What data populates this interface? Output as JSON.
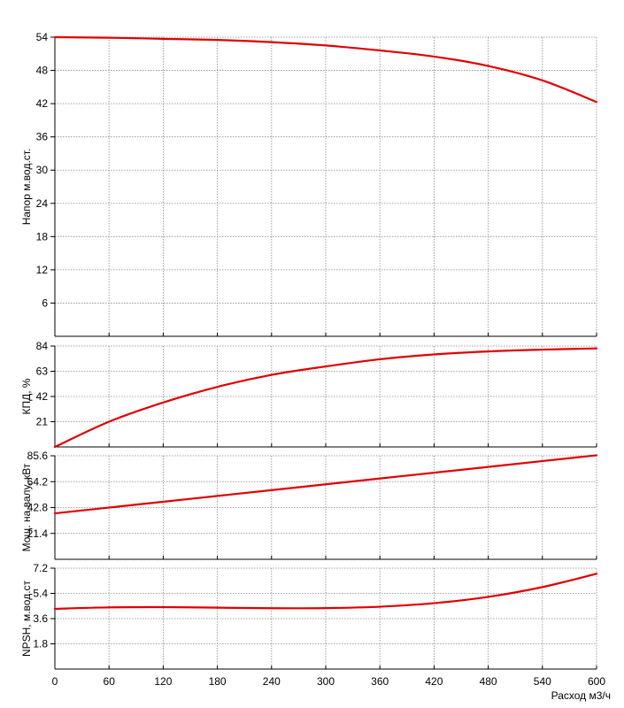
{
  "chart_data": [
    {
      "type": "line",
      "ylabel": "Напор м.вод.ст.",
      "xlim": [
        0,
        600
      ],
      "ylim": [
        0,
        54
      ],
      "yticks": [
        6,
        12,
        18,
        24,
        30,
        36,
        42,
        48,
        54
      ],
      "grid": true,
      "series": [
        {
          "x": [
            0,
            60,
            120,
            180,
            240,
            300,
            360,
            420,
            480,
            540,
            600
          ],
          "y": [
            54.0,
            53.9,
            53.7,
            53.5,
            53.1,
            52.5,
            51.6,
            50.5,
            48.8,
            46.2,
            42.3
          ]
        }
      ]
    },
    {
      "type": "line",
      "ylabel": "КПД, %",
      "xlim": [
        0,
        600
      ],
      "ylim": [
        0,
        84
      ],
      "yticks": [
        21,
        42,
        63,
        84
      ],
      "grid": true,
      "series": [
        {
          "x": [
            0,
            60,
            120,
            180,
            240,
            300,
            360,
            420,
            480,
            540,
            600
          ],
          "y": [
            0,
            21,
            37,
            50,
            60,
            67,
            73,
            77,
            79.5,
            81,
            82
          ]
        }
      ]
    },
    {
      "type": "line",
      "ylabel": "Мощ. на валу, кВт",
      "xlim": [
        0,
        600
      ],
      "ylim": [
        0,
        85.6
      ],
      "yticks": [
        21.4,
        42.8,
        64.2,
        85.6
      ],
      "ytick_labels": [
        "21.4",
        "42.8",
        "64.2",
        "85.6"
      ],
      "grid": true,
      "series": [
        {
          "x": [
            0,
            100,
            200,
            300,
            400,
            500,
            600
          ],
          "y": [
            38,
            46,
            54,
            62,
            70,
            78,
            86
          ]
        }
      ]
    },
    {
      "type": "line",
      "ylabel": "NPSH, м.вод.ст",
      "xlabel": "Расход м3/ч",
      "xlim": [
        0,
        600
      ],
      "ylim": [
        0,
        7.2
      ],
      "yticks": [
        1.8,
        3.6,
        5.4,
        7.2
      ],
      "xticks": [
        0,
        60,
        120,
        180,
        240,
        300,
        360,
        420,
        480,
        540,
        600
      ],
      "grid": true,
      "series": [
        {
          "x": [
            0,
            60,
            120,
            180,
            240,
            300,
            360,
            420,
            480,
            540,
            600
          ],
          "y": [
            4.3,
            4.4,
            4.42,
            4.38,
            4.34,
            4.35,
            4.45,
            4.7,
            5.15,
            5.85,
            6.8
          ]
        }
      ]
    }
  ],
  "style": {
    "line_color": "#e00000",
    "grid_color": "#888888",
    "axis_color": "#000000"
  }
}
